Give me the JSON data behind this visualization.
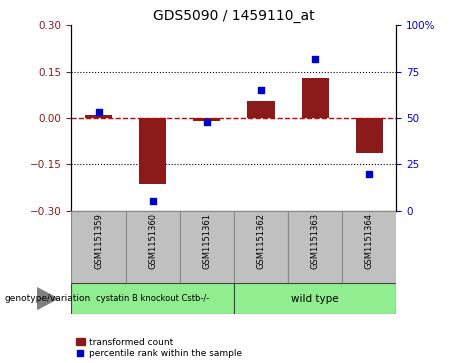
{
  "title": "GDS5090 / 1459110_at",
  "samples": [
    "GSM1151359",
    "GSM1151360",
    "GSM1151361",
    "GSM1151362",
    "GSM1151363",
    "GSM1151364"
  ],
  "bar_values": [
    0.01,
    -0.215,
    -0.01,
    0.055,
    0.13,
    -0.115
  ],
  "percentile_values": [
    53,
    5,
    48,
    65,
    82,
    20
  ],
  "ylim_left": [
    -0.3,
    0.3
  ],
  "ylim_right": [
    0,
    100
  ],
  "yticks_left": [
    -0.3,
    -0.15,
    0.0,
    0.15,
    0.3
  ],
  "yticks_right": [
    0,
    25,
    50,
    75,
    100
  ],
  "bar_color": "#8B1A1A",
  "dot_color": "#0000CD",
  "line_color": "#CC0000",
  "sample_bg_color": "#C0C0C0",
  "group1_label": "cystatin B knockout Cstb-/-",
  "group2_label": "wild type",
  "group1_color": "#90EE90",
  "group2_color": "#90EE90",
  "group1_indices": [
    0,
    1,
    2
  ],
  "group2_indices": [
    3,
    4,
    5
  ],
  "legend_bar_label": "transformed count",
  "legend_dot_label": "percentile rank within the sample",
  "genotype_label": "genotype/variation"
}
